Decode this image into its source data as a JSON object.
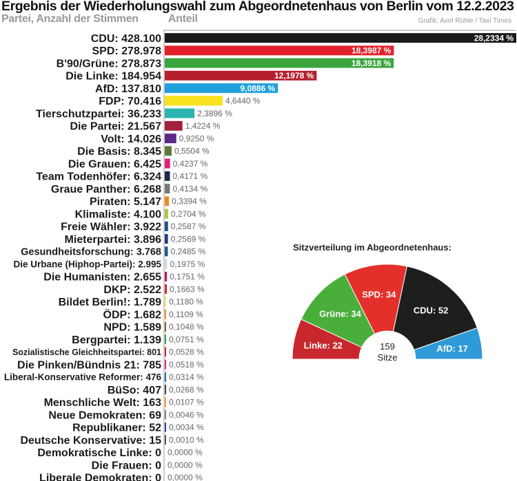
{
  "header": {
    "title": "Ergebnis der Wiederholungswahl zum Abgeordnetenhaus von Berlin vom 12.2.2023",
    "subtitle_left": "Partei, Anzahl der Stimmen",
    "subtitle_right": "Anteil",
    "credit": "Grafik: Axel Rühle / Taxi Times"
  },
  "chart_data": [
    {
      "type": "bar",
      "orientation": "horizontal",
      "title": "Ergebnis der Wiederholungswahl zum Abgeordnetenhaus von Berlin vom 12.2.2023",
      "xlabel": "Anteil",
      "ylabel": "Partei, Anzahl der Stimmen",
      "grid": false,
      "legend": "none",
      "parties": [
        {
          "label": "CDU: 428.100",
          "votes": 428100,
          "share": 28.2334,
          "share_label": "28,2334 %",
          "color": "#1a1a1a"
        },
        {
          "label": "SPD: 278.978",
          "votes": 278978,
          "share": 18.3987,
          "share_label": "18,3987 %",
          "color": "#e3202a"
        },
        {
          "label": "B'90/Grüne: 278.873",
          "votes": 278873,
          "share": 18.3918,
          "share_label": "18,3918 %",
          "color": "#3aa53f"
        },
        {
          "label": "Die Linke: 184.954",
          "votes": 184954,
          "share": 12.1978,
          "share_label": "12,1978 %",
          "color": "#b5202e"
        },
        {
          "label": "AfD: 137.810",
          "votes": 137810,
          "share": 9.0886,
          "share_label": "9,0886 %",
          "color": "#1fa0dd"
        },
        {
          "label": "FDP: 70.416",
          "votes": 70416,
          "share": 4.644,
          "share_label": "4,6440 %",
          "color": "#f7e21c"
        },
        {
          "label": "Tierschutzpartei: 36.233",
          "votes": 36233,
          "share": 2.3896,
          "share_label": "2,3896 %",
          "color": "#2bb3b0"
        },
        {
          "label": "Die Partei: 21.567",
          "votes": 21567,
          "share": 1.4224,
          "share_label": "1,4224 %",
          "color": "#a3203a"
        },
        {
          "label": "Volt: 14.026",
          "votes": 14026,
          "share": 0.925,
          "share_label": "0,9250 %",
          "color": "#5b2a86"
        },
        {
          "label": "Die Basis: 8.345",
          "votes": 8345,
          "share": 0.5504,
          "share_label": "0,5504 %",
          "color": "#5e7a3a"
        },
        {
          "label": "Die Grauen: 6.425",
          "votes": 6425,
          "share": 0.4237,
          "share_label": "0,4237 %",
          "color": "#e2207a"
        },
        {
          "label": "Team Todenhöfer: 6.324",
          "votes": 6324,
          "share": 0.4171,
          "share_label": "0,4171 %",
          "color": "#1c2a4a"
        },
        {
          "label": "Graue Panther: 6.268",
          "votes": 6268,
          "share": 0.4134,
          "share_label": "0,4134 %",
          "color": "#777777"
        },
        {
          "label": "Piraten: 5.147",
          "votes": 5147,
          "share": 0.3394,
          "share_label": "0,3394 %",
          "color": "#f08a1c"
        },
        {
          "label": "Klimaliste: 4.100",
          "votes": 4100,
          "share": 0.2704,
          "share_label": "0,2704 %",
          "color": "#a8c83a"
        },
        {
          "label": "Freie Wähler: 3.922",
          "votes": 3922,
          "share": 0.2587,
          "share_label": "0,2587 %",
          "color": "#1b4f8a"
        },
        {
          "label": "Mieterpartei: 3.896",
          "votes": 3896,
          "share": 0.2569,
          "share_label": "0,2569 %",
          "color": "#1c3f7a"
        },
        {
          "label": "Gesundheitsforschung: 3.768",
          "votes": 3768,
          "share": 0.2485,
          "share_label": "0,2485 %",
          "color": "#1b5c8c"
        },
        {
          "label": "Die Urbane (Hiphop-Partei): 2.995",
          "votes": 2995,
          "share": 0.1975,
          "share_label": "0,1975 %",
          "color": "#c9ddf0"
        },
        {
          "label": "Die Humanisten: 2.655",
          "votes": 2655,
          "share": 0.1751,
          "share_label": "0,1751 %",
          "color": "#c2185b"
        },
        {
          "label": "DKP: 2.522",
          "votes": 2522,
          "share": 0.1663,
          "share_label": "0,1663 %",
          "color": "#d32f2f"
        },
        {
          "label": "Bildet Berlin!: 1.789",
          "votes": 1789,
          "share": 0.118,
          "share_label": "0,1180 %",
          "color": "#f2e96b"
        },
        {
          "label": "ÖDP: 1.682",
          "votes": 1682,
          "share": 0.1109,
          "share_label": "0,1109 %",
          "color": "#f28c28"
        },
        {
          "label": "NPD: 1.589",
          "votes": 1589,
          "share": 0.1048,
          "share_label": "0,1048 %",
          "color": "#8a5a2b"
        },
        {
          "label": "Bergpartei: 1.139",
          "votes": 1139,
          "share": 0.0751,
          "share_label": "0,0751 %",
          "color": "#3a9a5a"
        },
        {
          "label": "Sozialistische Gleichheitspartei: 801",
          "votes": 801,
          "share": 0.0528,
          "share_label": "0,0528 %",
          "color": "#c62828"
        },
        {
          "label": "Die Pinken/Bündnis 21: 785",
          "votes": 785,
          "share": 0.0518,
          "share_label": "0,0518 %",
          "color": "#e91e8c"
        },
        {
          "label": "Liberal-Konservative Reformer: 476",
          "votes": 476,
          "share": 0.0314,
          "share_label": "0,0314 %",
          "color": "#1f6fb2"
        },
        {
          "label": "BüSo: 407",
          "votes": 407,
          "share": 0.0268,
          "share_label": "0,0268 %",
          "color": "#444444"
        },
        {
          "label": "Menschliche Welt: 163",
          "votes": 163,
          "share": 0.0107,
          "share_label": "0,0107 %",
          "color": "#f0a030"
        },
        {
          "label": "Neue Demokraten: 69",
          "votes": 69,
          "share": 0.0046,
          "share_label": "0,0046 %",
          "color": "#888888"
        },
        {
          "label": "Republikaner: 52",
          "votes": 52,
          "share": 0.0034,
          "share_label": "0,0034 %",
          "color": "#2a4a8a"
        },
        {
          "label": "Deutsche Konservative: 15",
          "votes": 15,
          "share": 0.001,
          "share_label": "0,0010 %",
          "color": "#555555"
        },
        {
          "label": "Demokratische Linke: 0",
          "votes": 0,
          "share": 0,
          "share_label": "0,0000 %",
          "color": "#888888"
        },
        {
          "label": "Die Frauen: 0",
          "votes": 0,
          "share": 0,
          "share_label": "0,0000 %",
          "color": "#888888"
        },
        {
          "label": "Liberale Demokraten: 0",
          "votes": 0,
          "share": 0,
          "share_label": "0,0000 %",
          "color": "#888888"
        }
      ],
      "xlim": [
        0,
        28.2334
      ]
    },
    {
      "type": "pie",
      "variant": "semicircle",
      "title": "Sitzverteilung im Abgeordnetenhaus:",
      "total_label": "159",
      "total_sublabel": "Sitze",
      "slices": [
        {
          "label": "Linke: 22",
          "seats": 22,
          "color": "#c8282d"
        },
        {
          "label": "Grüne: 34",
          "seats": 34,
          "color": "#4aae3a"
        },
        {
          "label": "SPD: 34",
          "seats": 34,
          "color": "#e3302a"
        },
        {
          "label": "CDU: 52",
          "seats": 52,
          "color": "#1e1e1e"
        },
        {
          "label": "AfD: 17",
          "seats": 17,
          "color": "#2f9ad8"
        }
      ]
    }
  ]
}
